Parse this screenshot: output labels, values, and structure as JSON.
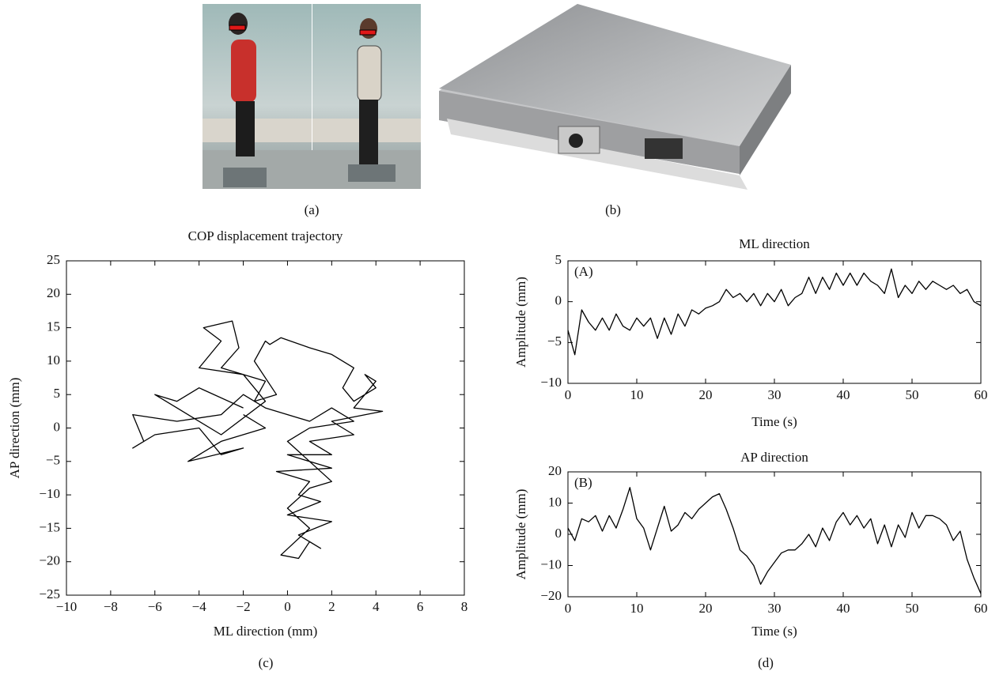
{
  "captions": [
    "(a)",
    "(b)",
    "(c)",
    "(d)"
  ],
  "chart_data": [
    {
      "type": "line",
      "title": "COP displacement trajectory",
      "xlabel": "ML direction (mm)",
      "ylabel": "AP direction (mm)",
      "color": "#000000",
      "xlim": [
        -10,
        8
      ],
      "ylim": [
        -25,
        25
      ],
      "xticks": [
        {
          "value": -10,
          "label": "−10"
        },
        {
          "value": -8,
          "label": "−8"
        },
        {
          "value": -6,
          "label": "−6"
        },
        {
          "value": -4,
          "label": "−4"
        },
        {
          "value": -2,
          "label": "−2"
        },
        0,
        2,
        4,
        6,
        8
      ],
      "yticks": [
        {
          "value": -25,
          "label": "−25"
        },
        {
          "value": -20,
          "label": "−20"
        },
        {
          "value": -15,
          "label": "−15"
        },
        {
          "value": -10,
          "label": "−10"
        },
        {
          "value": -5,
          "label": "−5"
        },
        0,
        5,
        10,
        15,
        20,
        25
      ],
      "x": [
        -2,
        -4,
        -5,
        -6,
        -5,
        -3,
        -1,
        -2,
        -4,
        -3,
        -3.8,
        -2.5,
        -2.2,
        -3,
        -1,
        -1.5,
        -0.5,
        -1.5,
        -1,
        -0.8,
        -0.3,
        1,
        2,
        3,
        2.5,
        3,
        4,
        3.5,
        4,
        3,
        4.3,
        2,
        3,
        1,
        2,
        0,
        2,
        -0.5,
        1,
        0.5,
        1.5,
        0,
        2,
        0.5,
        1.5,
        1,
        0.5,
        -0.3,
        1,
        0,
        1,
        2,
        0,
        1,
        3,
        2,
        1,
        -1,
        -2,
        -3,
        -5,
        -7,
        -6.5,
        -7,
        -6,
        -4,
        -3,
        -2,
        -4.5,
        -3,
        -1,
        -2
      ],
      "values": [
        3,
        6,
        4,
        5,
        3,
        -1,
        4,
        8,
        9,
        13,
        15,
        16,
        12,
        9,
        7,
        4,
        5,
        10,
        13,
        12.5,
        13.5,
        12,
        11,
        9,
        6,
        4,
        6,
        8,
        7,
        3,
        2.5,
        1,
        -1,
        -2,
        -4,
        -4,
        -6,
        -6.5,
        -8,
        -10,
        -11,
        -13,
        -14,
        -16,
        -18,
        -17,
        -19.5,
        -19,
        -15,
        -12,
        -9,
        -8,
        -2,
        0,
        1,
        3,
        1,
        3,
        5,
        2,
        1,
        2,
        -2,
        -3,
        -1,
        0,
        -4,
        -3,
        -5,
        -2,
        0,
        2
      ]
    },
    {
      "type": "line",
      "title": "ML direction",
      "annotation": "(A)",
      "xlabel": "Time (s)",
      "ylabel": "Amplitude (mm)",
      "color": "#000000",
      "xlim": [
        0,
        60
      ],
      "ylim": [
        -10,
        5
      ],
      "xticks": [
        0,
        10,
        20,
        30,
        40,
        50,
        60
      ],
      "yticks": [
        {
          "value": -10,
          "label": "−10"
        },
        {
          "value": -5,
          "label": "−5"
        },
        0,
        5
      ],
      "x": [
        0,
        1,
        2,
        3,
        4,
        5,
        6,
        7,
        8,
        9,
        10,
        11,
        12,
        13,
        14,
        15,
        16,
        17,
        18,
        19,
        20,
        21,
        22,
        23,
        24,
        25,
        26,
        27,
        28,
        29,
        30,
        31,
        32,
        33,
        34,
        35,
        36,
        37,
        38,
        39,
        40,
        41,
        42,
        43,
        44,
        45,
        46,
        47,
        48,
        49,
        50,
        51,
        52,
        53,
        54,
        55,
        56,
        57,
        58,
        59,
        60
      ],
      "values": [
        -3.5,
        -6.5,
        -1,
        -2.5,
        -3.5,
        -2,
        -3.5,
        -1.5,
        -3,
        -3.5,
        -2,
        -3,
        -2,
        -4.5,
        -2,
        -4,
        -1.5,
        -3,
        -1,
        -1.5,
        -0.8,
        -0.5,
        0,
        1.5,
        0.5,
        1,
        0,
        1,
        -0.5,
        1,
        0,
        1.5,
        -0.5,
        0.5,
        1,
        3,
        1,
        3,
        1.5,
        3.5,
        2,
        3.5,
        2,
        3.5,
        2.5,
        2,
        1,
        4,
        0.5,
        2,
        1,
        2.5,
        1.5,
        2.5,
        2,
        1.5,
        2,
        1,
        1.5,
        0,
        -0.5
      ]
    },
    {
      "type": "line",
      "title": "AP direction",
      "annotation": "(B)",
      "xlabel": "Time (s)",
      "ylabel": "Amplitude (mm)",
      "color": "#000000",
      "xlim": [
        0,
        60
      ],
      "ylim": [
        -20,
        20
      ],
      "xticks": [
        0,
        10,
        20,
        30,
        40,
        50,
        60
      ],
      "yticks": [
        {
          "value": -20,
          "label": "−20"
        },
        {
          "value": -10,
          "label": "−10"
        },
        0,
        10,
        20
      ],
      "x": [
        0,
        1,
        2,
        3,
        4,
        5,
        6,
        7,
        8,
        9,
        10,
        11,
        12,
        13,
        14,
        15,
        16,
        17,
        18,
        19,
        20,
        21,
        22,
        23,
        24,
        25,
        26,
        27,
        28,
        29,
        30,
        31,
        32,
        33,
        34,
        35,
        36,
        37,
        38,
        39,
        40,
        41,
        42,
        43,
        44,
        45,
        46,
        47,
        48,
        49,
        50,
        51,
        52,
        53,
        54,
        55,
        56,
        57,
        58,
        59,
        60
      ],
      "values": [
        2,
        -2,
        5,
        4,
        6,
        1,
        6,
        2,
        8,
        15,
        5,
        2,
        -5,
        2,
        9,
        1,
        3,
        7,
        5,
        8,
        10,
        12,
        13,
        8,
        2,
        -5,
        -7,
        -10,
        -16,
        -12,
        -9,
        -6,
        -5,
        -5,
        -3,
        0,
        -4,
        2,
        -2,
        4,
        7,
        3,
        6,
        2,
        5,
        -3,
        3,
        -4,
        3,
        -1,
        7,
        2,
        6,
        6,
        5,
        3,
        -2,
        1,
        -8,
        -14,
        -19
      ]
    }
  ]
}
